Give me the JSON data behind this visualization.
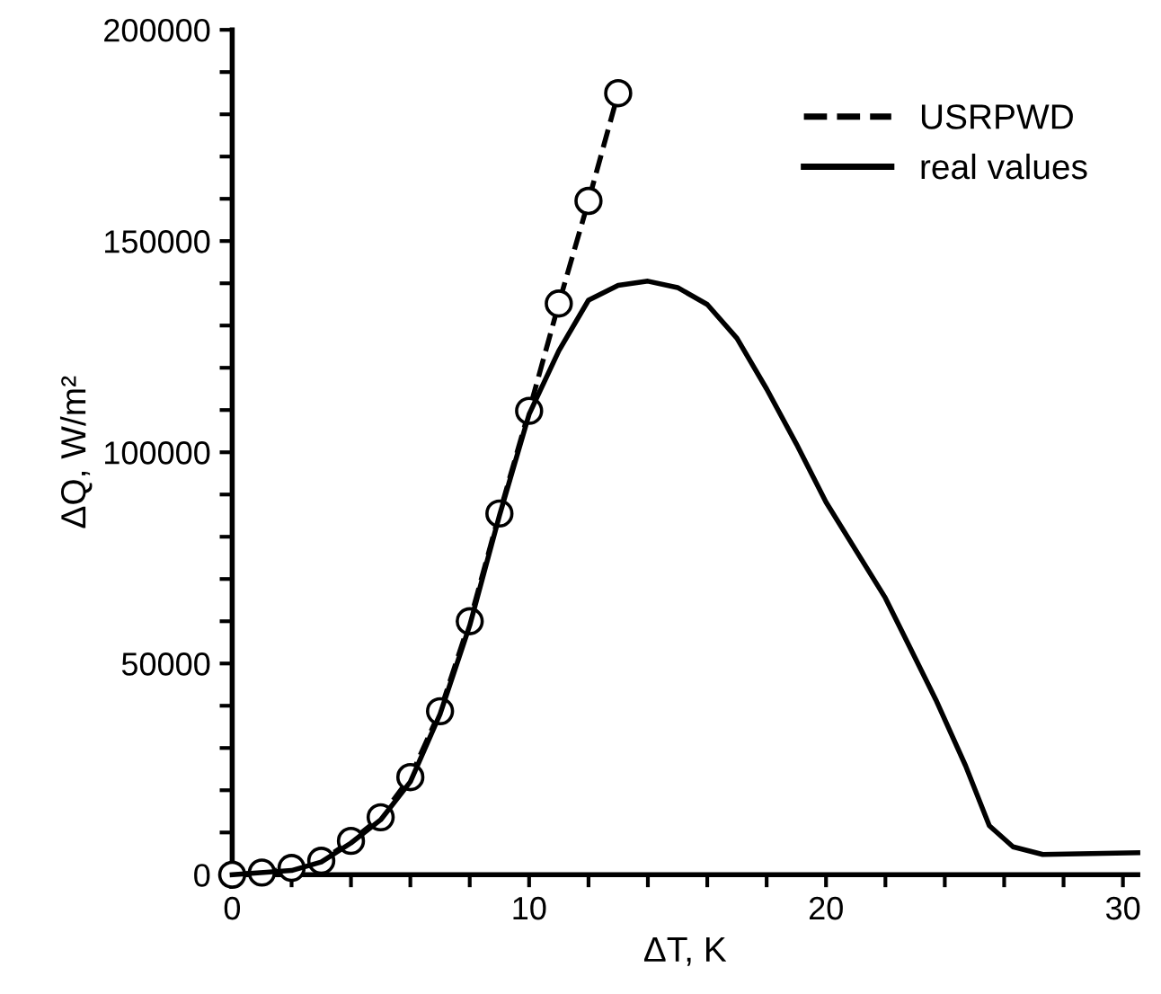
{
  "chart_data": {
    "type": "line",
    "xlabel": "ΔT, K",
    "ylabel": "ΔQ, W/m²",
    "xlim": [
      0,
      30.5
    ],
    "ylim": [
      0,
      200000
    ],
    "xticks": [
      0,
      {
        "value": 2,
        "label": null
      },
      {
        "value": 4,
        "label": null
      },
      {
        "value": 6,
        "label": null
      },
      {
        "value": 8,
        "label": null
      },
      10,
      {
        "value": 12,
        "label": null
      },
      {
        "value": 14,
        "label": null
      },
      {
        "value": 16,
        "label": null
      },
      {
        "value": 18,
        "label": null
      },
      20,
      {
        "value": 22,
        "label": null
      },
      {
        "value": 24,
        "label": null
      },
      {
        "value": 26,
        "label": null
      },
      {
        "value": 28,
        "label": null
      },
      30
    ],
    "yticks": [
      0,
      {
        "value": 10000,
        "label": null
      },
      {
        "value": 20000,
        "label": null
      },
      {
        "value": 30000,
        "label": null
      },
      {
        "value": 40000,
        "label": null
      },
      50000,
      {
        "value": 60000,
        "label": null
      },
      {
        "value": 70000,
        "label": null
      },
      {
        "value": 80000,
        "label": null
      },
      {
        "value": 90000,
        "label": null
      },
      100000,
      {
        "value": 110000,
        "label": null
      },
      {
        "value": 120000,
        "label": null
      },
      {
        "value": 130000,
        "label": null
      },
      {
        "value": 140000,
        "label": null
      },
      150000,
      {
        "value": 160000,
        "label": null
      },
      {
        "value": 170000,
        "label": null
      },
      {
        "value": 180000,
        "label": null
      },
      {
        "value": 190000,
        "label": null
      },
      200000
    ],
    "grid": false,
    "legend": "top right",
    "series": [
      {
        "name": "USRPWD",
        "color": "#000000",
        "marker": "circle",
        "line_style": "dashed",
        "x": [
          0,
          1,
          2,
          3,
          4,
          5,
          6,
          7,
          8,
          9,
          10,
          11,
          12,
          13
        ],
        "values": [
          0,
          500,
          1600,
          3300,
          8000,
          13600,
          23100,
          38700,
          60000,
          85500,
          109800,
          135200,
          159500,
          185000
        ]
      },
      {
        "name": "real values",
        "color": "#000000",
        "marker": "none",
        "line_style": "solid",
        "x": [
          0,
          2,
          3,
          4,
          5,
          6,
          7,
          8,
          9,
          10,
          11,
          12,
          13,
          14,
          15,
          16,
          17,
          18,
          19,
          20,
          22,
          23.7,
          24.7,
          25.5,
          26.3,
          27.3,
          30.5
        ],
        "values": [
          0,
          1000,
          3000,
          7500,
          13000,
          22000,
          38000,
          59000,
          85000,
          109000,
          124000,
          136000,
          139500,
          140500,
          139000,
          135000,
          127000,
          115000,
          102000,
          88200,
          65500,
          41400,
          25800,
          11600,
          6600,
          4800,
          5200
        ]
      }
    ]
  }
}
